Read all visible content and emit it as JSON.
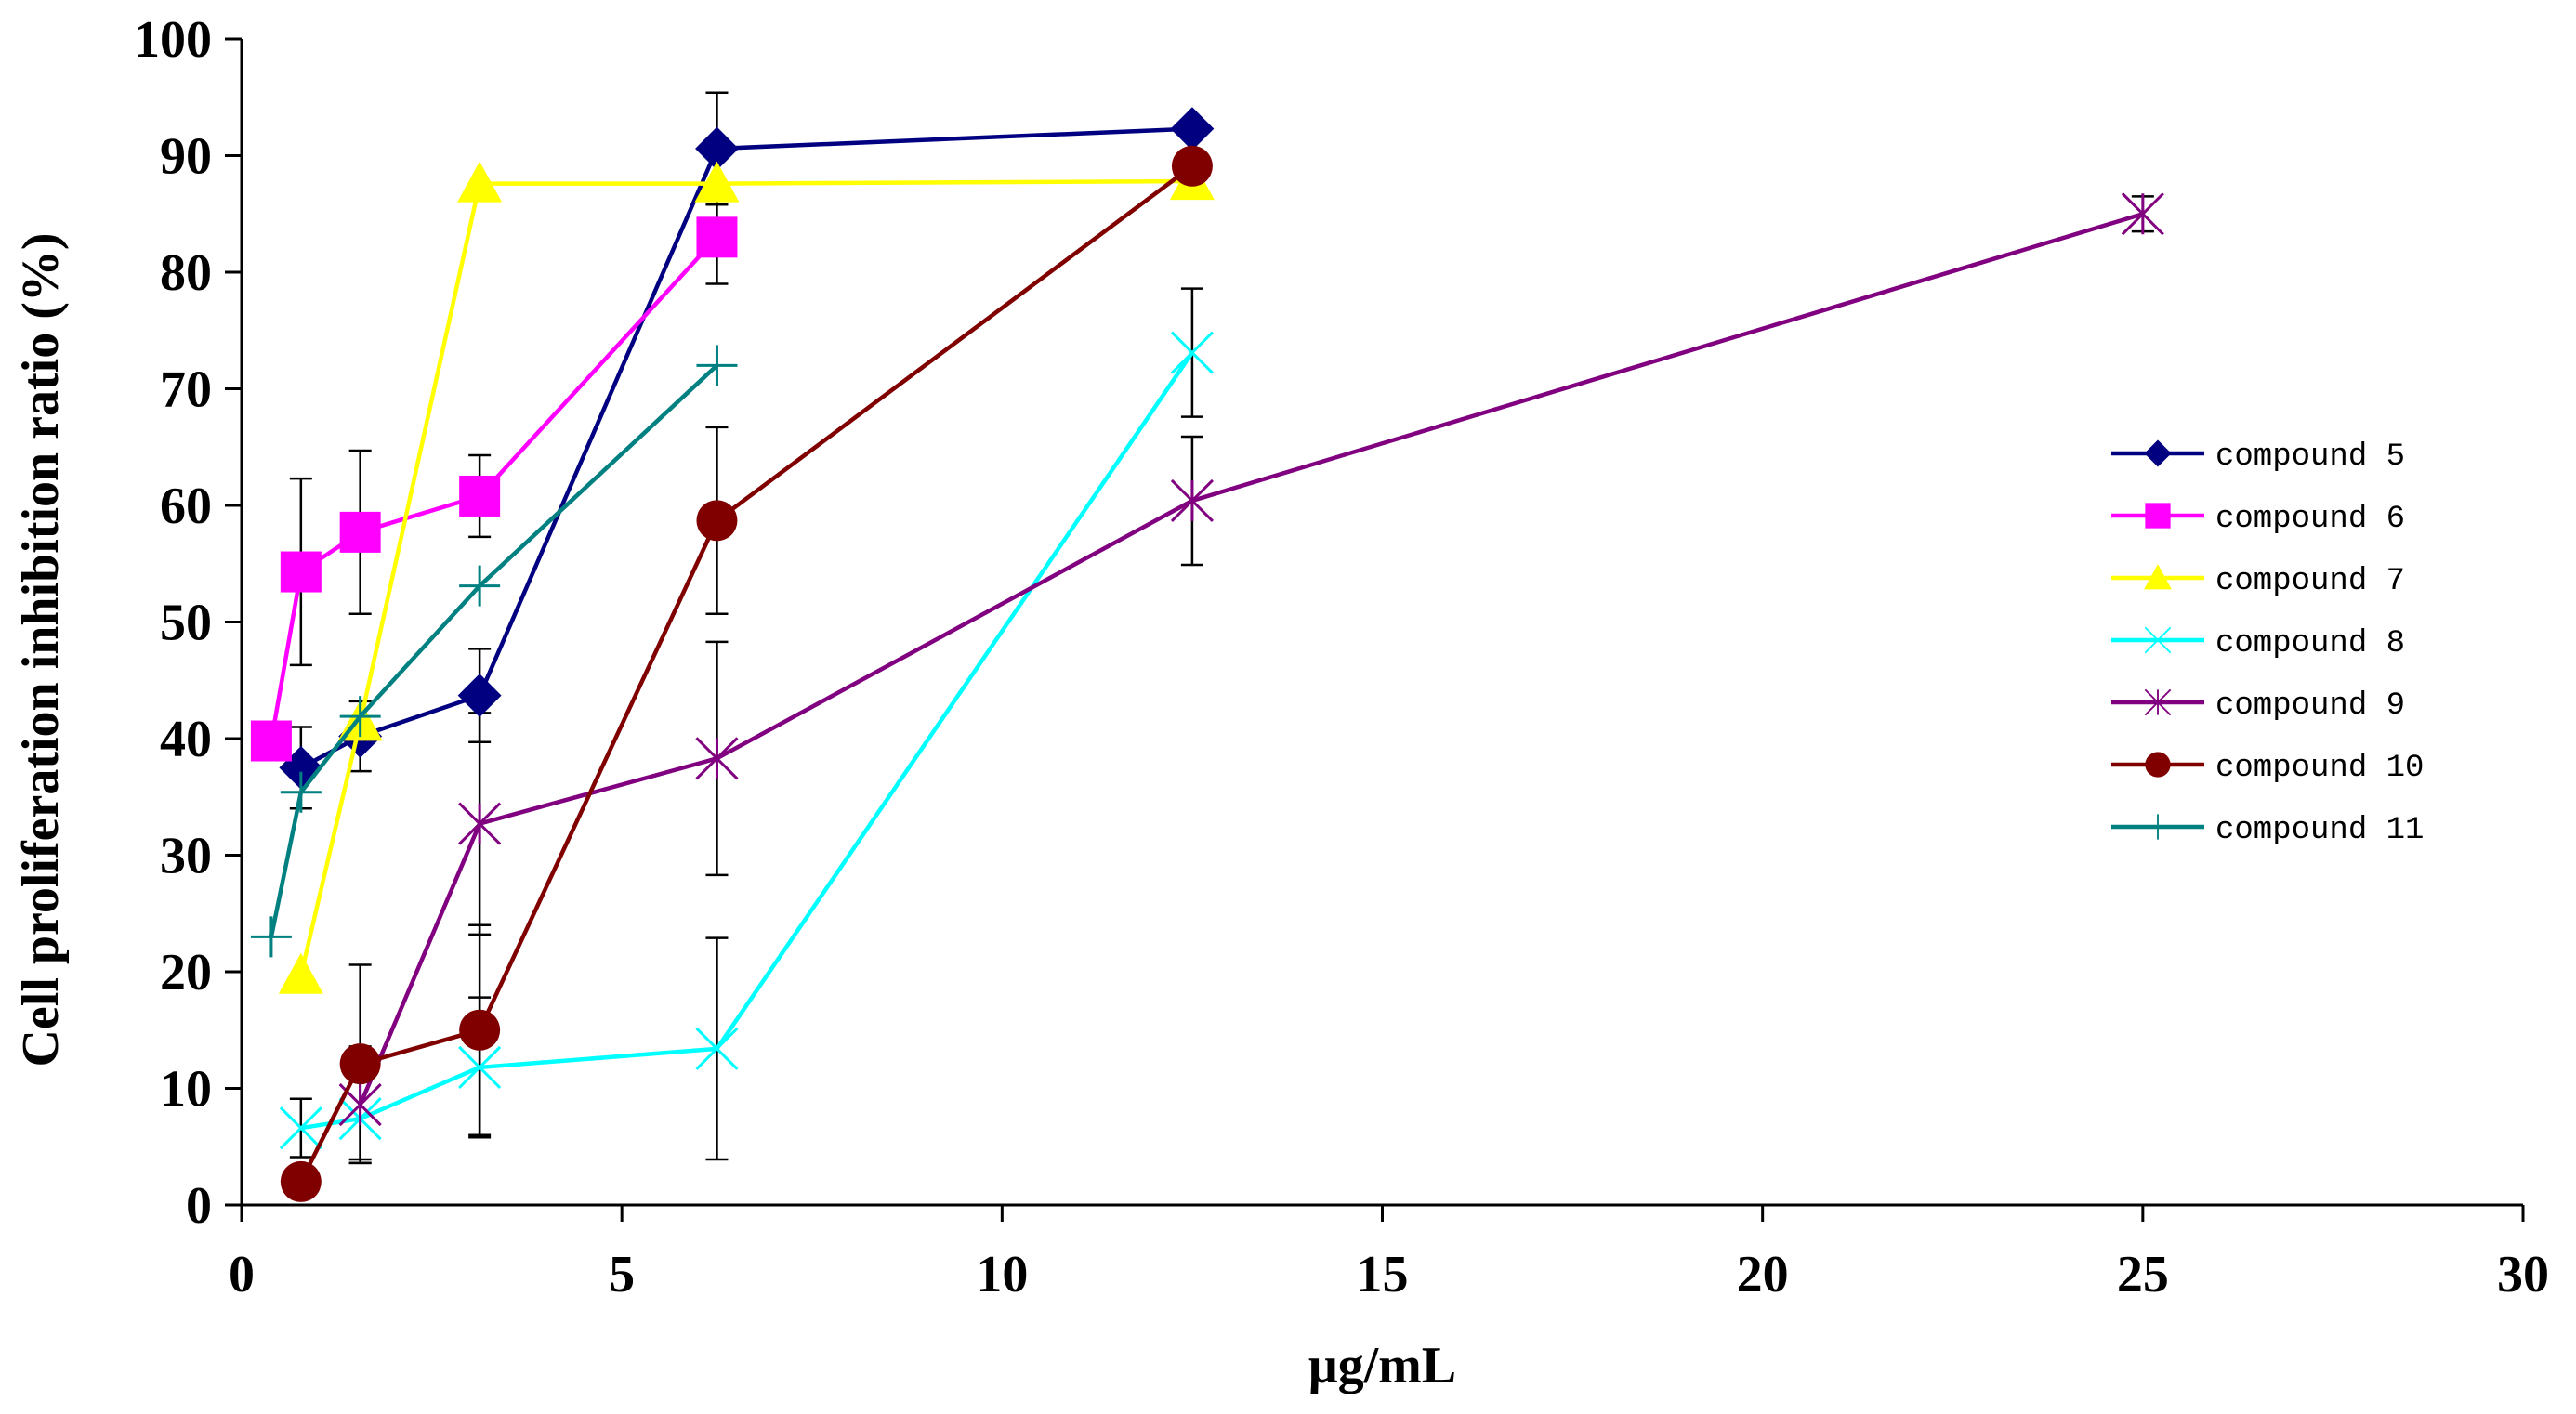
{
  "chart_data": {
    "type": "line",
    "title": "",
    "xlabel": "μg/mL",
    "ylabel": "Cell proliferation inhibition ratio (%)",
    "xlim": [
      0,
      30
    ],
    "ylim": [
      0,
      100
    ],
    "xticks": [
      0,
      5,
      10,
      15,
      20,
      25,
      30
    ],
    "yticks": [
      0,
      10,
      20,
      30,
      40,
      50,
      60,
      70,
      80,
      90,
      100
    ],
    "grid": false,
    "legend_position": "right",
    "series": [
      {
        "name": "compound 5",
        "color": "#000080",
        "marker": "diamond",
        "x": [
          0.78,
          1.56,
          3.13,
          6.25,
          12.5
        ],
        "y": [
          37.5,
          40.2,
          43.7,
          90.6,
          92.3
        ],
        "err": [
          3.5,
          3,
          4,
          4.8,
          0
        ]
      },
      {
        "name": "compound 6",
        "color": "#FF00FF",
        "marker": "square",
        "x": [
          0.39,
          0.78,
          1.56,
          3.13,
          6.25
        ],
        "y": [
          39.8,
          54.3,
          57.7,
          60.8,
          83.0
        ],
        "err": [
          0,
          8,
          7,
          3.5,
          4
        ]
      },
      {
        "name": "compound 7",
        "color": "#FFFF00",
        "marker": "triangle",
        "x": [
          0.78,
          1.56,
          3.13,
          6.25,
          12.5
        ],
        "y": [
          19.7,
          41.4,
          87.6,
          87.6,
          87.8
        ],
        "err": [
          0,
          0,
          0,
          0,
          0
        ]
      },
      {
        "name": "compound 8",
        "color": "#00FFFF",
        "marker": "x",
        "x": [
          0.78,
          1.56,
          3.13,
          6.25,
          12.5
        ],
        "y": [
          6.6,
          7.4,
          11.8,
          13.4,
          73.1
        ],
        "err": [
          2.5,
          3.5,
          6,
          9.5,
          5.5
        ]
      },
      {
        "name": "compound 9",
        "color": "#800080",
        "marker": "asterisk",
        "x": [
          1.56,
          3.13,
          6.25,
          12.5,
          25
        ],
        "y": [
          8.6,
          32.7,
          38.3,
          60.4,
          85.0
        ],
        "err": [
          5,
          9.5,
          10,
          5.5,
          1.5
        ]
      },
      {
        "name": "compound 10",
        "color": "#800000",
        "marker": "circle",
        "x": [
          0.78,
          1.56,
          3.13,
          6.25,
          12.5
        ],
        "y": [
          2.0,
          12.1,
          15.0,
          58.7,
          89.1
        ],
        "err": [
          0,
          8.5,
          9,
          8,
          0
        ]
      },
      {
        "name": "compound 11",
        "color": "#008080",
        "marker": "plus",
        "x": [
          0.39,
          0.78,
          1.56,
          3.13,
          6.25
        ],
        "y": [
          23.0,
          35.4,
          41.9,
          53.1,
          72.0
        ],
        "err": [
          0,
          0,
          0,
          0,
          0
        ]
      }
    ]
  }
}
